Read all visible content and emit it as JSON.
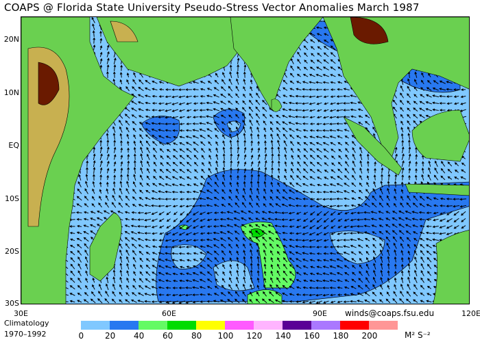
{
  "title": "COAPS @ Florida State University Pseudo-Stress Vector Anomalies  March 1987",
  "latitude_labels": [
    "20N",
    "10N",
    "EQ",
    "10S",
    "20S",
    "30S"
  ],
  "longitude_labels": [
    "30E",
    "60E",
    "90E",
    "120E"
  ],
  "credit": "winds@coaps.fsu.edu",
  "climatology": {
    "label": "Climatology",
    "period": "1970–1992"
  },
  "legend": {
    "units": "M² S⁻²",
    "ticks": [
      "0",
      "20",
      "40",
      "60",
      "80",
      "100",
      "120",
      "140",
      "160",
      "180",
      "200"
    ],
    "colors": [
      "#80c8ff",
      "#2878f0",
      "#64fa64",
      "#00dc00",
      "#ffff00",
      "#ff5aff",
      "#ffb4ff",
      "#5a0096",
      "#aa78ff",
      "#ff0000",
      "#ff9696"
    ]
  },
  "colors": {
    "land_low": "#6ad050",
    "land_mid": "#c8b050",
    "land_high": "#6a1a00",
    "coast": "#c8c8c8"
  }
}
